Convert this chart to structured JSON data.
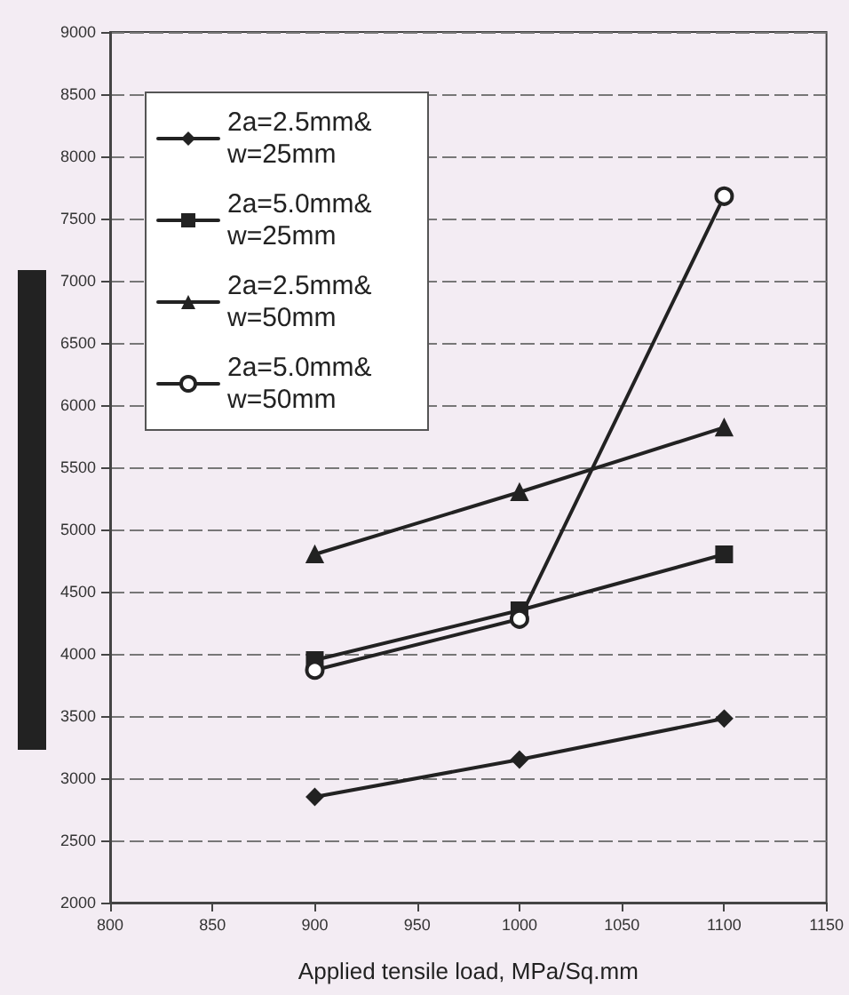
{
  "chart_data": {
    "type": "line",
    "xlabel": "Applied tensile load, MPa/Sq.mm",
    "x": [
      900,
      1000,
      1100
    ],
    "series": [
      {
        "name": "2a=2.5mm& w=25mm",
        "color": "#222222",
        "marker": "diamond",
        "values": [
          2850,
          3150,
          3480
        ]
      },
      {
        "name": "2a=5.0mm& w=25mm",
        "color": "#222222",
        "marker": "square",
        "values": [
          3950,
          4350,
          4800
        ]
      },
      {
        "name": "2a=2.5mm& w=50mm",
        "color": "#222222",
        "marker": "triangle",
        "values": [
          4800,
          5300,
          5820
        ]
      },
      {
        "name": "2a=5.0mm& w=50mm",
        "color": "#222222",
        "marker": "circle",
        "values": [
          3870,
          4280,
          7680
        ]
      }
    ],
    "xlim": [
      800,
      1150
    ],
    "xticks": [
      800,
      850,
      900,
      950,
      1000,
      1050,
      1100,
      1150
    ],
    "ylim": [
      2000,
      9000
    ],
    "yticks": [
      2000,
      2500,
      3000,
      3500,
      4000,
      4500,
      5000,
      5500,
      6000,
      6500,
      7000,
      7500,
      8000,
      8500,
      9000
    ],
    "grid": "y",
    "legend": "top left",
    "line_style": "solid"
  }
}
